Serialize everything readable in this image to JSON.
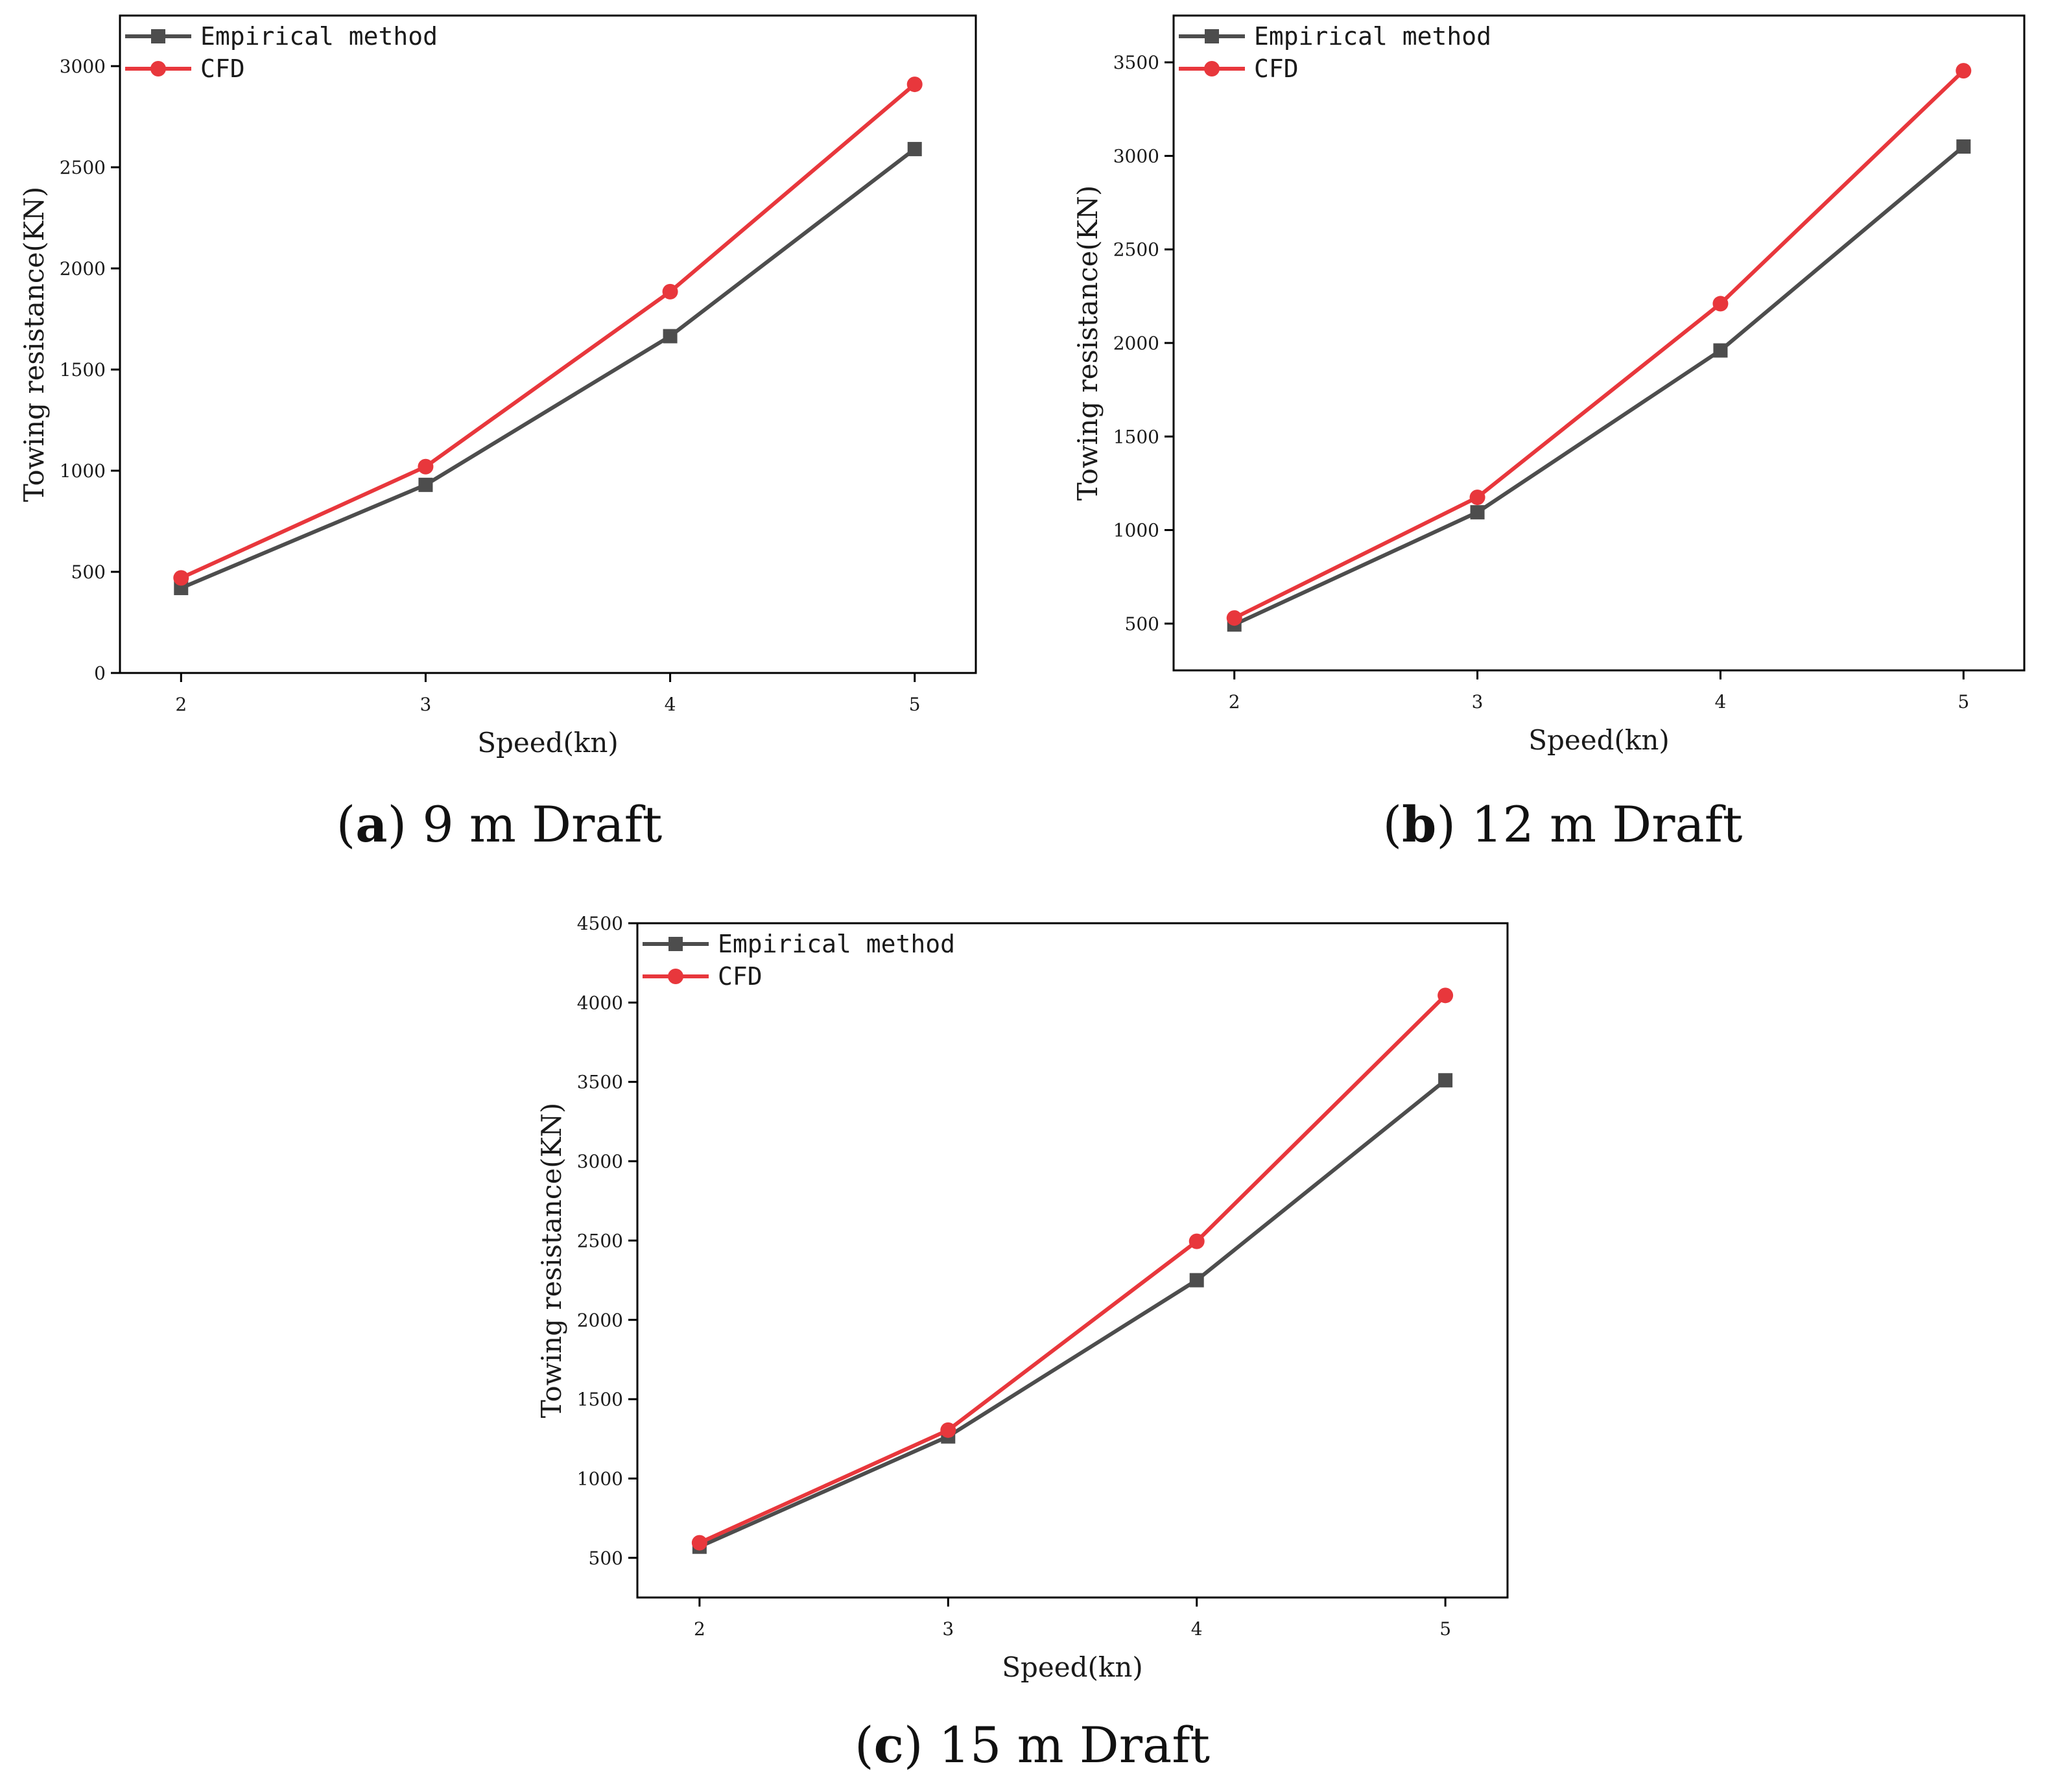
{
  "colors": {
    "empirical": "#4d4d4d",
    "cfd": "#e8373c",
    "axis": "#000000"
  },
  "chart_data": [
    {
      "type": "line",
      "id": "a",
      "caption_label": "a",
      "caption_text": " 9 m Draft",
      "xlabel": "Speed(kn)",
      "ylabel": "Towing resistance(KN)",
      "x": [
        2,
        3,
        4,
        5
      ],
      "x_ticks": [
        2,
        3,
        4,
        5
      ],
      "xlim": [
        1.75,
        5.25
      ],
      "y_ticks": [
        0,
        500,
        1000,
        1500,
        2000,
        2500,
        3000
      ],
      "ylim": [
        0,
        3250
      ],
      "grid": false,
      "legend_position": "top-left",
      "series": [
        {
          "name": "Empirical method",
          "marker": "square",
          "color": "#4d4d4d",
          "values": [
            420,
            930,
            1665,
            2590
          ]
        },
        {
          "name": "CFD",
          "marker": "circle",
          "color": "#e8373c",
          "values": [
            470,
            1020,
            1885,
            2910
          ]
        }
      ]
    },
    {
      "type": "line",
      "id": "b",
      "caption_label": "b",
      "caption_text": " 12 m Draft",
      "xlabel": "Speed(kn)",
      "ylabel": "Towing resistance(KN)",
      "x": [
        2,
        3,
        4,
        5
      ],
      "x_ticks": [
        2,
        3,
        4,
        5
      ],
      "xlim": [
        1.75,
        5.25
      ],
      "y_ticks": [
        500,
        1000,
        1500,
        2000,
        2500,
        3000,
        3500
      ],
      "ylim": [
        250,
        3750
      ],
      "grid": false,
      "legend_position": "top-left",
      "series": [
        {
          "name": "Empirical method",
          "marker": "square",
          "color": "#4d4d4d",
          "values": [
            495,
            1095,
            1960,
            3050
          ]
        },
        {
          "name": "CFD",
          "marker": "circle",
          "color": "#e8373c",
          "values": [
            530,
            1175,
            2210,
            3455
          ]
        }
      ]
    },
    {
      "type": "line",
      "id": "c",
      "caption_label": "c",
      "caption_text": " 15 m Draft",
      "xlabel": "Speed(kn)",
      "ylabel": "Towing resistance(KN)",
      "x": [
        2,
        3,
        4,
        5
      ],
      "x_ticks": [
        2,
        3,
        4,
        5
      ],
      "xlim": [
        1.75,
        5.25
      ],
      "y_ticks": [
        500,
        1000,
        1500,
        2000,
        2500,
        3000,
        3500,
        4000,
        4500
      ],
      "ylim": [
        250,
        4500
      ],
      "grid": false,
      "legend_position": "top-left",
      "series": [
        {
          "name": "Empirical method",
          "marker": "square",
          "color": "#4d4d4d",
          "values": [
            570,
            1265,
            2250,
            3510
          ]
        },
        {
          "name": "CFD",
          "marker": "circle",
          "color": "#e8373c",
          "values": [
            595,
            1305,
            2495,
            4045
          ]
        }
      ]
    }
  ]
}
